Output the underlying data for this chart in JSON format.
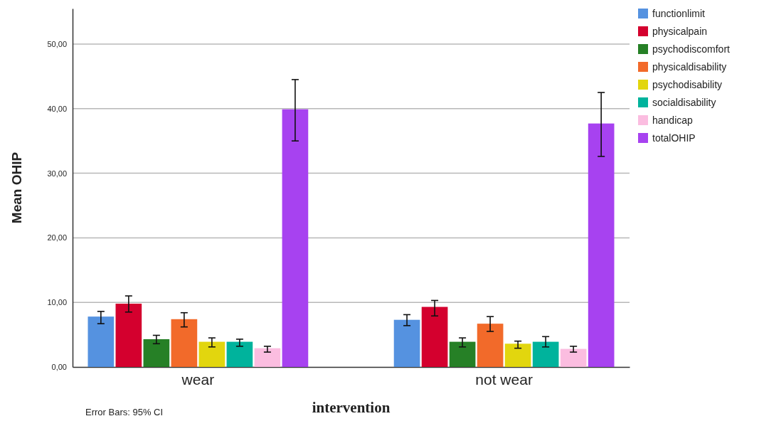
{
  "chart_data": {
    "type": "bar",
    "xlabel": "intervention",
    "ylabel": "Mean OHIP",
    "categories": [
      "wear",
      "not wear"
    ],
    "series": [
      {
        "name": "functionlimit",
        "color": "#5592e0",
        "values": [
          7.8,
          7.3
        ],
        "errors": [
          [
            6.7,
            8.6
          ],
          [
            6.4,
            8.1
          ]
        ]
      },
      {
        "name": "physicalpain",
        "color": "#d4002e",
        "values": [
          9.8,
          9.3
        ],
        "errors": [
          [
            8.5,
            11.0
          ],
          [
            7.9,
            10.3
          ]
        ]
      },
      {
        "name": "psychodiscomfort",
        "color": "#268026",
        "values": [
          4.3,
          3.9
        ],
        "errors": [
          [
            3.6,
            4.9
          ],
          [
            3.1,
            4.5
          ]
        ]
      },
      {
        "name": "physicaldisability",
        "color": "#f26a2a",
        "values": [
          7.4,
          6.7
        ],
        "errors": [
          [
            6.2,
            8.4
          ],
          [
            5.5,
            7.8
          ]
        ]
      },
      {
        "name": "psychodisability",
        "color": "#e2d60e",
        "values": [
          3.9,
          3.6
        ],
        "errors": [
          [
            3.1,
            4.5
          ],
          [
            2.9,
            4.0
          ]
        ]
      },
      {
        "name": "socialdisability",
        "color": "#00b39c",
        "values": [
          3.9,
          3.9
        ],
        "errors": [
          [
            3.2,
            4.3
          ],
          [
            3.1,
            4.7
          ]
        ]
      },
      {
        "name": "handicap",
        "color": "#fbbde0",
        "values": [
          2.9,
          2.8
        ],
        "errors": [
          [
            2.3,
            3.2
          ],
          [
            2.3,
            3.2
          ]
        ]
      },
      {
        "name": "totalOHIP",
        "color": "#a742f0",
        "values": [
          39.9,
          37.7
        ],
        "errors": [
          [
            35.0,
            44.5
          ],
          [
            32.6,
            42.5
          ]
        ]
      }
    ],
    "ylim": [
      0,
      55.5
    ],
    "yticks": [
      {
        "value": 0,
        "label": "0,00"
      },
      {
        "value": 10,
        "label": "10,00"
      },
      {
        "value": 20,
        "label": "20,00"
      },
      {
        "value": 30,
        "label": "30,00"
      },
      {
        "value": 40,
        "label": "40,00"
      },
      {
        "value": 50,
        "label": "50,00"
      }
    ],
    "grid": "y",
    "legend": "top right",
    "annotations": [
      "Error Bars: 95% CI"
    ]
  }
}
